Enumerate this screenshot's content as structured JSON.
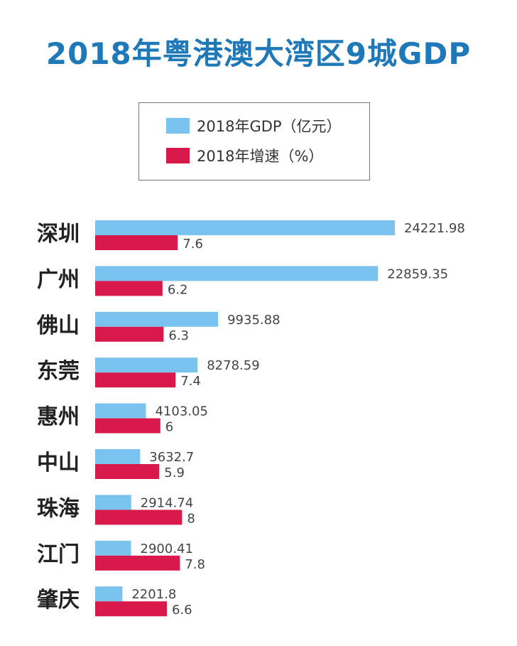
{
  "chart_data": {
    "type": "bar",
    "title": "2018年粤港澳大湾区9城GDP",
    "categories": [
      "深圳",
      "广州",
      "佛山",
      "东莞",
      "惠州",
      "中山",
      "珠海",
      "江门",
      "肇庆"
    ],
    "series": [
      {
        "name": "2018年GDP（亿元）",
        "color": "#7ac3ee",
        "values": [
          24221.98,
          22859.35,
          9935.88,
          8278.59,
          4103.05,
          3632.7,
          2914.74,
          2900.41,
          2201.8
        ],
        "labels": [
          "24221.98",
          "22859.35",
          "9935.88",
          "8278.59",
          "4103.05",
          "3632.7",
          "2914.74",
          "2900.41",
          "2201.8"
        ]
      },
      {
        "name": "2018年增速（%）",
        "color": "#d71a4b",
        "values": [
          7.6,
          6.2,
          6.3,
          7.4,
          6,
          5.9,
          8,
          7.8,
          6.6
        ],
        "labels": [
          "7.6",
          "6.2",
          "6.3",
          "7.4",
          "6",
          "5.9",
          "8",
          "7.8",
          "6.6"
        ]
      }
    ],
    "orientation": "horizontal",
    "legend_position": "top-center",
    "grid": false
  }
}
